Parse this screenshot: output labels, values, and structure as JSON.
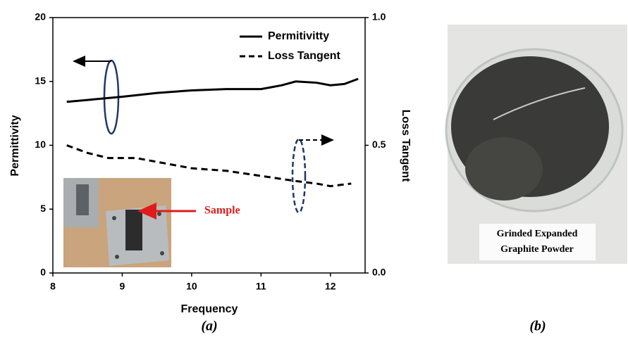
{
  "chart_data": {
    "type": "line",
    "x_label": "Frequency",
    "y_label": "Permittivity",
    "y2_label": "Loss Tangent",
    "xlim": [
      8,
      12.5
    ],
    "xticks": [
      8,
      9,
      10,
      11,
      12
    ],
    "ylim": [
      0,
      20
    ],
    "yticks": [
      0,
      5,
      10,
      15,
      20
    ],
    "y2lim": [
      0,
      1
    ],
    "y2ticks": [
      {
        "value": 0,
        "label": "0.0"
      },
      0.5,
      {
        "value": 1,
        "label": "1.0"
      }
    ],
    "legend": "upper right",
    "series": [
      {
        "name": "Permitivitty",
        "color": "#000000",
        "dash": false,
        "x": [
          8.2,
          8.6,
          9.0,
          9.5,
          10.0,
          10.5,
          11.0,
          11.3,
          11.5,
          11.8,
          12.0,
          12.2,
          12.4
        ],
        "values": [
          13.4,
          13.6,
          13.8,
          14.1,
          14.3,
          14.4,
          14.4,
          14.7,
          15.0,
          14.9,
          14.7,
          14.8,
          15.2
        ]
      },
      {
        "name": "Loss Tangent",
        "color": "#000000",
        "dash": true,
        "axis": "y2",
        "x": [
          8.2,
          8.5,
          8.8,
          9.2,
          9.6,
          10.0,
          10.5,
          11.0,
          11.5,
          11.8,
          12.0,
          12.3
        ],
        "values": [
          0.5,
          0.47,
          0.45,
          0.45,
          0.43,
          0.41,
          0.4,
          0.38,
          0.36,
          0.35,
          0.34,
          0.35
        ]
      }
    ],
    "annotations": [
      "Sample"
    ]
  },
  "panel_labels": [
    "(a)",
    "(b)"
  ],
  "photo_caption": [
    "Grinded Expanded",
    "Graphite Powder"
  ]
}
